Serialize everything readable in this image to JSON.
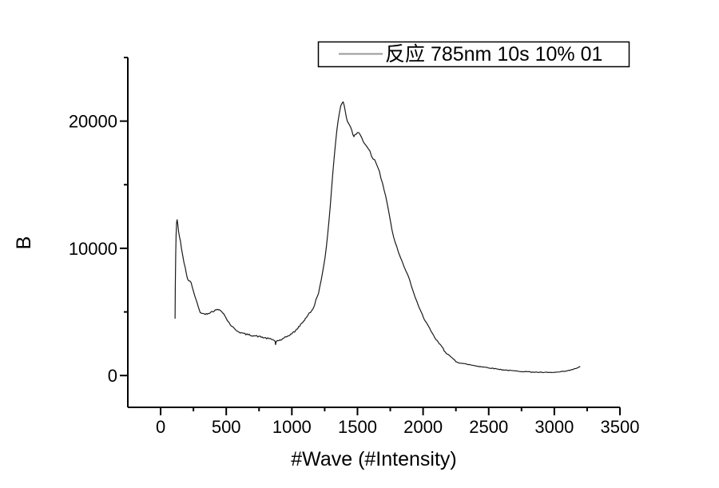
{
  "page": {
    "background": "#ffffff"
  },
  "chart_data": {
    "type": "line",
    "title": "",
    "xlabel": "#Wave (#Intensity)",
    "ylabel": "B",
    "grid": false,
    "legend": {
      "label": "反应 785nm 10s 10% 01",
      "sample_color": "#999999",
      "position": "top-center-above-plot",
      "border": true
    },
    "axes": {
      "x": {
        "min": -250,
        "max": 3500,
        "major_ticks": [
          0,
          500,
          1000,
          1500,
          2000,
          2500,
          3000,
          3500
        ],
        "major_tick_labels": [
          "0",
          "500",
          "1000",
          "1500",
          "2000",
          "2500",
          "3000",
          "3500"
        ],
        "minor_ticks": [
          250,
          750,
          1250,
          1750,
          2250,
          2750,
          3250
        ]
      },
      "y": {
        "min": -2500,
        "max": 25000,
        "major_ticks": [
          0,
          10000,
          20000
        ],
        "major_tick_labels": [
          "0",
          "10000",
          "20000"
        ],
        "minor_ticks": [
          5000,
          15000,
          25000
        ]
      }
    },
    "series": [
      {
        "name": "反应 785nm 10s 10% 01",
        "color": "#1a1a1a",
        "noise_seed": 42,
        "noise_regions": [
          [
            130,
            870,
            60
          ],
          [
            886,
            1240,
            60
          ],
          [
            1240,
            1355,
            45
          ],
          [
            1355,
            1425,
            55
          ],
          [
            1425,
            1540,
            110
          ],
          [
            1540,
            1690,
            130
          ],
          [
            1690,
            2210,
            55
          ],
          [
            2210,
            3195,
            28
          ]
        ],
        "points": [
          [
            110,
            4500
          ],
          [
            112,
            7200
          ],
          [
            115,
            9600
          ],
          [
            118,
            11100
          ],
          [
            122,
            12050
          ],
          [
            126,
            12250
          ],
          [
            131,
            11850
          ],
          [
            137,
            11300
          ],
          [
            144,
            10850
          ],
          [
            151,
            10550
          ],
          [
            159,
            10000
          ],
          [
            168,
            9450
          ],
          [
            178,
            8900
          ],
          [
            188,
            8450
          ],
          [
            197,
            7900
          ],
          [
            205,
            7600
          ],
          [
            214,
            7480
          ],
          [
            224,
            7380
          ],
          [
            232,
            7280
          ],
          [
            241,
            6980
          ],
          [
            251,
            6620
          ],
          [
            263,
            6170
          ],
          [
            276,
            5760
          ],
          [
            289,
            5320
          ],
          [
            301,
            5020
          ],
          [
            313,
            4890
          ],
          [
            326,
            4840
          ],
          [
            340,
            4850
          ],
          [
            355,
            4880
          ],
          [
            370,
            4930
          ],
          [
            386,
            4990
          ],
          [
            401,
            5060
          ],
          [
            416,
            5130
          ],
          [
            431,
            5170
          ],
          [
            446,
            5190
          ],
          [
            459,
            5140
          ],
          [
            471,
            5000
          ],
          [
            483,
            4810
          ],
          [
            496,
            4560
          ],
          [
            509,
            4340
          ],
          [
            523,
            4130
          ],
          [
            539,
            3910
          ],
          [
            556,
            3730
          ],
          [
            576,
            3570
          ],
          [
            596,
            3440
          ],
          [
            616,
            3350
          ],
          [
            641,
            3270
          ],
          [
            666,
            3210
          ],
          [
            691,
            3170
          ],
          [
            716,
            3120
          ],
          [
            741,
            3080
          ],
          [
            766,
            3030
          ],
          [
            791,
            2970
          ],
          [
            816,
            2910
          ],
          [
            836,
            2870
          ],
          [
            853,
            2820
          ],
          [
            866,
            2770
          ],
          [
            872,
            2700
          ],
          [
            876,
            2430
          ],
          [
            881,
            2670
          ],
          [
            889,
            2740
          ],
          [
            901,
            2760
          ],
          [
            916,
            2800
          ],
          [
            931,
            2870
          ],
          [
            946,
            2960
          ],
          [
            961,
            3050
          ],
          [
            976,
            3150
          ],
          [
            991,
            3240
          ],
          [
            1006,
            3340
          ],
          [
            1021,
            3460
          ],
          [
            1036,
            3610
          ],
          [
            1051,
            3790
          ],
          [
            1066,
            3990
          ],
          [
            1081,
            4180
          ],
          [
            1096,
            4370
          ],
          [
            1111,
            4590
          ],
          [
            1126,
            4810
          ],
          [
            1141,
            4970
          ],
          [
            1153,
            5090
          ],
          [
            1163,
            5290
          ],
          [
            1173,
            5570
          ],
          [
            1183,
            5910
          ],
          [
            1193,
            6210
          ],
          [
            1203,
            6510
          ],
          [
            1213,
            6960
          ],
          [
            1223,
            7460
          ],
          [
            1233,
            8010
          ],
          [
            1243,
            8610
          ],
          [
            1253,
            9310
          ],
          [
            1263,
            10110
          ],
          [
            1273,
            11110
          ],
          [
            1283,
            12210
          ],
          [
            1293,
            13410
          ],
          [
            1303,
            14710
          ],
          [
            1313,
            16010
          ],
          [
            1323,
            17210
          ],
          [
            1333,
            18310
          ],
          [
            1343,
            19310
          ],
          [
            1353,
            20110
          ],
          [
            1363,
            20710
          ],
          [
            1373,
            21160
          ],
          [
            1383,
            21410
          ],
          [
            1391,
            21460
          ],
          [
            1399,
            21260
          ],
          [
            1407,
            20810
          ],
          [
            1415,
            20310
          ],
          [
            1423,
            20010
          ],
          [
            1431,
            19860
          ],
          [
            1439,
            19710
          ],
          [
            1447,
            19560
          ],
          [
            1456,
            19260
          ],
          [
            1465,
            18960
          ],
          [
            1473,
            18810
          ],
          [
            1481,
            18860
          ],
          [
            1491,
            19010
          ],
          [
            1501,
            19110
          ],
          [
            1511,
            19060
          ],
          [
            1521,
            18910
          ],
          [
            1533,
            18660
          ],
          [
            1546,
            18410
          ],
          [
            1559,
            18210
          ],
          [
            1571,
            18060
          ],
          [
            1583,
            17860
          ],
          [
            1595,
            17610
          ],
          [
            1607,
            17310
          ],
          [
            1619,
            17110
          ],
          [
            1631,
            16910
          ],
          [
            1643,
            16710
          ],
          [
            1655,
            16460
          ],
          [
            1667,
            16110
          ],
          [
            1679,
            15610
          ],
          [
            1691,
            15110
          ],
          [
            1703,
            14610
          ],
          [
            1715,
            14110
          ],
          [
            1727,
            13510
          ],
          [
            1739,
            12810
          ],
          [
            1751,
            12110
          ],
          [
            1763,
            11410
          ],
          [
            1775,
            10910
          ],
          [
            1787,
            10510
          ],
          [
            1799,
            10110
          ],
          [
            1813,
            9660
          ],
          [
            1827,
            9260
          ],
          [
            1841,
            8910
          ],
          [
            1855,
            8560
          ],
          [
            1869,
            8260
          ],
          [
            1883,
            7910
          ],
          [
            1897,
            7510
          ],
          [
            1911,
            7060
          ],
          [
            1925,
            6610
          ],
          [
            1939,
            6160
          ],
          [
            1953,
            5760
          ],
          [
            1967,
            5410
          ],
          [
            1981,
            5060
          ],
          [
            1996,
            4730
          ],
          [
            2011,
            4420
          ],
          [
            2026,
            4150
          ],
          [
            2041,
            3850
          ],
          [
            2056,
            3550
          ],
          [
            2071,
            3280
          ],
          [
            2086,
            3020
          ],
          [
            2101,
            2800
          ],
          [
            2116,
            2600
          ],
          [
            2131,
            2400
          ],
          [
            2146,
            2250
          ],
          [
            2161,
            1950
          ],
          [
            2176,
            1800
          ],
          [
            2191,
            1650
          ],
          [
            2211,
            1450
          ],
          [
            2231,
            1300
          ],
          [
            2251,
            1100
          ],
          [
            2276,
            1000
          ],
          [
            2301,
            950
          ],
          [
            2331,
            890
          ],
          [
            2361,
            840
          ],
          [
            2401,
            760
          ],
          [
            2441,
            700
          ],
          [
            2481,
            640
          ],
          [
            2521,
            580
          ],
          [
            2561,
            520
          ],
          [
            2601,
            460
          ],
          [
            2651,
            405
          ],
          [
            2701,
            360
          ],
          [
            2751,
            325
          ],
          [
            2801,
            295
          ],
          [
            2851,
            265
          ],
          [
            2901,
            245
          ],
          [
            2951,
            235
          ],
          [
            3001,
            245
          ],
          [
            3051,
            290
          ],
          [
            3101,
            365
          ],
          [
            3141,
            475
          ],
          [
            3171,
            585
          ],
          [
            3195,
            700
          ]
        ]
      }
    ]
  }
}
